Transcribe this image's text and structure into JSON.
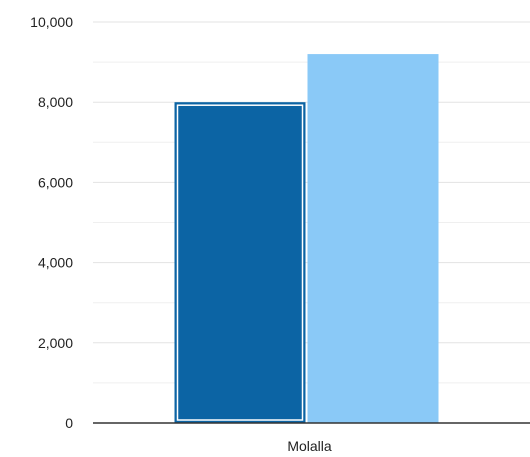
{
  "chart_data": {
    "type": "bar",
    "categories": [
      "Molalla"
    ],
    "series": [
      {
        "values": [
          8000
        ],
        "color": "#0c64a4",
        "selected": true
      },
      {
        "values": [
          9200
        ],
        "color": "#8ac9f7",
        "selected": false
      }
    ],
    "ylim": [
      0,
      10000
    ],
    "yticks": [
      0,
      2000,
      4000,
      6000,
      8000,
      10000
    ],
    "ytick_labels": [
      "0",
      "2,000",
      "4,000",
      "6,000",
      "8,000",
      "10,000"
    ],
    "grid": true,
    "minor_grid": true,
    "colors": {
      "grid": "#e3e3e3",
      "minor_grid": "#efefef",
      "axis": "#333333",
      "selection_outline": "#ffffff"
    }
  }
}
